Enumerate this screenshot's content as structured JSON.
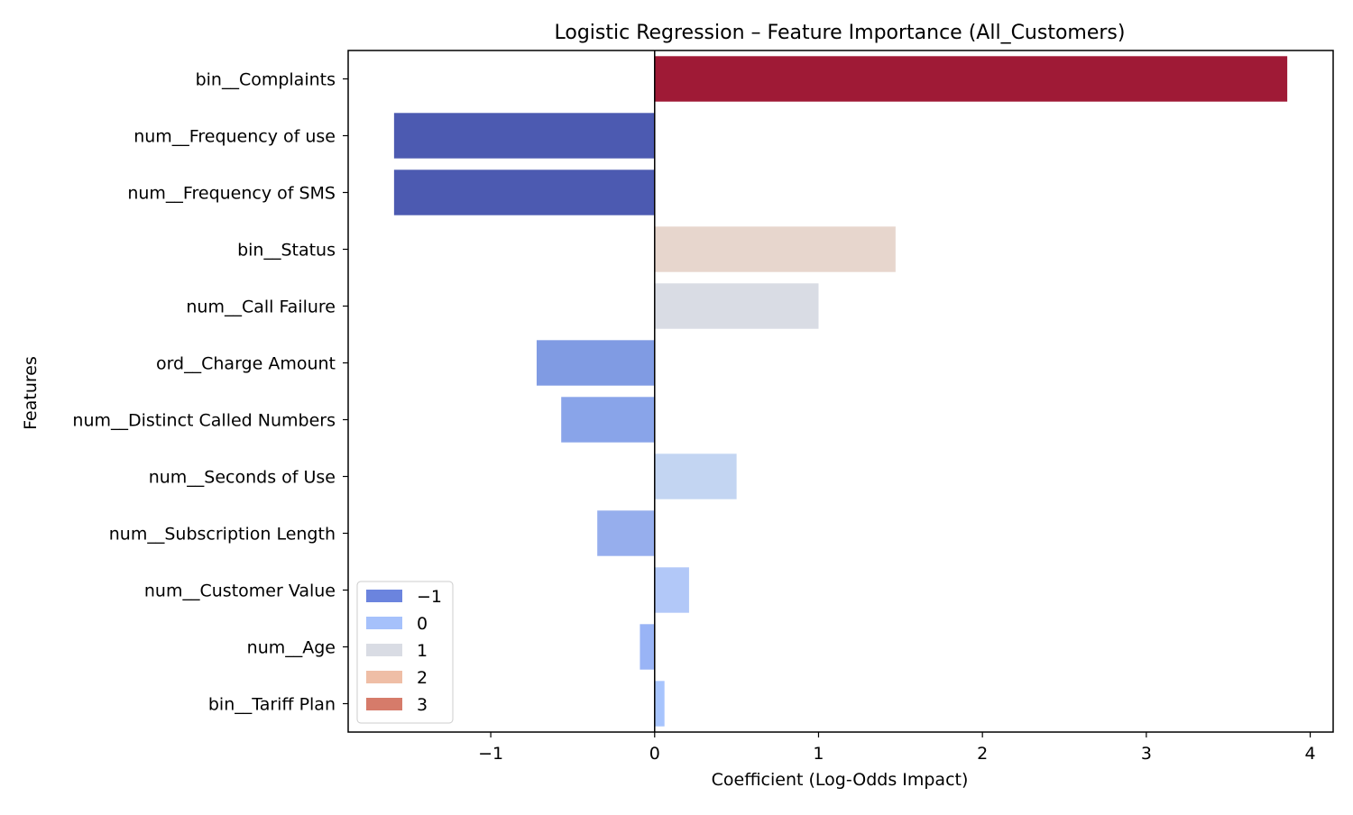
{
  "chart_data": {
    "type": "bar",
    "orientation": "horizontal",
    "title": "Logistic Regression – Feature Importance (All_Customers)",
    "xlabel": "Coefficient (Log-Odds Impact)",
    "ylabel": "Features",
    "xlim": [
      -1.87,
      4.14
    ],
    "xticks": [
      -1,
      0,
      1,
      2,
      3,
      4
    ],
    "xtick_labels": [
      "−1",
      "0",
      "1",
      "2",
      "3",
      "4"
    ],
    "categories": [
      "bin__Complaints",
      "num__Frequency of use",
      "num__Frequency of SMS",
      "bin__Status",
      "num__Call Failure",
      "ord__Charge Amount",
      "num__Distinct Called Numbers",
      "num__Seconds of Use",
      "num__Subscription Length",
      "num__Customer Value",
      "num__Age",
      "bin__Tariff Plan"
    ],
    "values": [
      3.86,
      -1.59,
      -1.59,
      1.47,
      1.0,
      -0.72,
      -0.57,
      0.5,
      -0.35,
      0.21,
      -0.09,
      0.06
    ],
    "bar_colors": [
      "#9f1a36",
      "#4c5ab1",
      "#4c5ab1",
      "#e7d6cd",
      "#d9dce4",
      "#809be3",
      "#89a4e9",
      "#c3d5f2",
      "#96aeed",
      "#b2c8f8",
      "#99b4f6",
      "#a7c4fd"
    ],
    "zero_line": true,
    "grid": false,
    "legend": {
      "position": "lower-left",
      "entries": [
        {
          "label": "−1",
          "color": "#6b84de"
        },
        {
          "label": "0",
          "color": "#a6c1fb"
        },
        {
          "label": "1",
          "color": "#d9dce4"
        },
        {
          "label": "2",
          "color": "#efbea6"
        },
        {
          "label": "3",
          "color": "#d67b6a"
        }
      ]
    }
  }
}
